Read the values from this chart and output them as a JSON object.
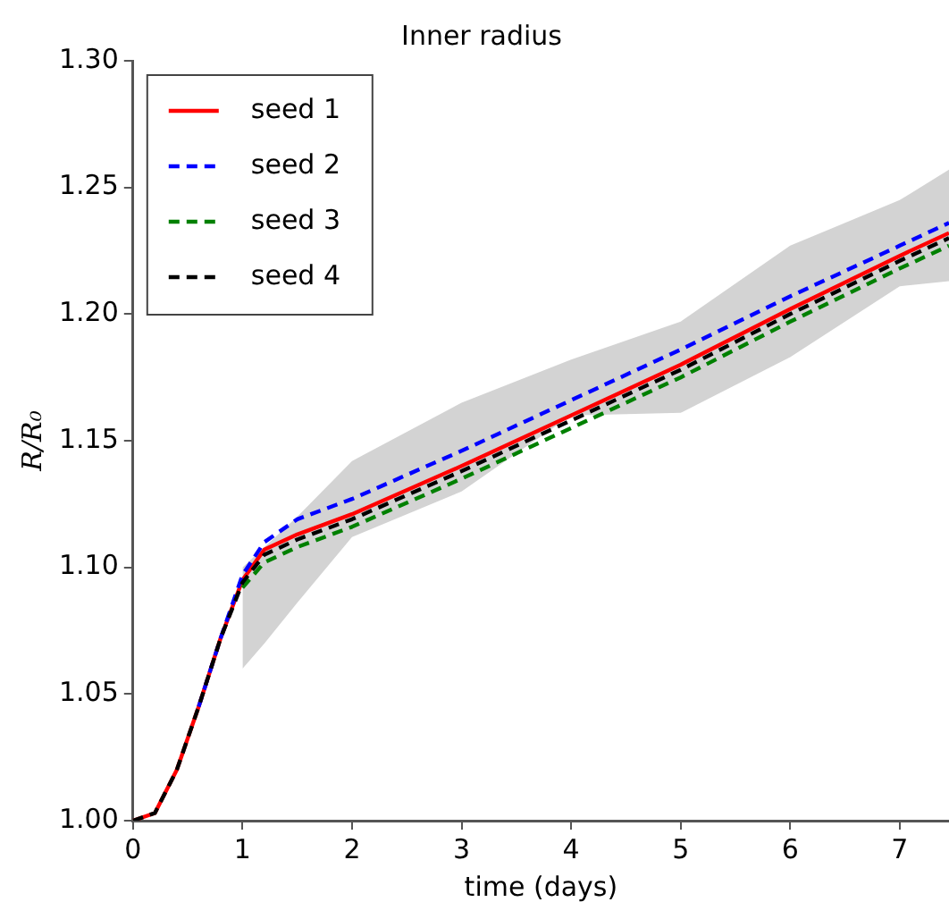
{
  "chart_data": {
    "type": "line",
    "title": "Inner radius",
    "xlabel": "time (days)",
    "ylabel": "R/R₀",
    "x": [
      0,
      0.2,
      0.4,
      0.6,
      0.8,
      1,
      1.2,
      1.5,
      2,
      3,
      4,
      5,
      6,
      7,
      7.45
    ],
    "series": [
      {
        "name": "seed 1",
        "color": "#ff0000",
        "line_style": "solid",
        "values": [
          1.0,
          1.003,
          1.02,
          1.045,
          1.072,
          1.095,
          1.107,
          1.113,
          1.121,
          1.14,
          1.16,
          1.18,
          1.202,
          1.223,
          1.232
        ],
        "lower": [
          null,
          null,
          null,
          null,
          null,
          1.06,
          1.07,
          1.086,
          1.112,
          1.13,
          1.16,
          1.161,
          1.183,
          1.211,
          1.213
        ],
        "upper": [
          null,
          null,
          null,
          null,
          null,
          1.1,
          1.108,
          1.12,
          1.142,
          1.165,
          1.182,
          1.197,
          1.227,
          1.245,
          1.257
        ]
      },
      {
        "name": "seed 2",
        "color": "#0000ff",
        "line_style": "dashed",
        "values": [
          null,
          null,
          null,
          1.045,
          1.072,
          1.097,
          1.11,
          1.119,
          1.127,
          1.146,
          1.166,
          1.186,
          1.207,
          1.227,
          1.236
        ]
      },
      {
        "name": "seed 3",
        "color": "#008000",
        "line_style": "dashed",
        "values": [
          null,
          null,
          null,
          null,
          null,
          1.092,
          1.102,
          1.108,
          1.116,
          1.135,
          1.155,
          1.175,
          1.197,
          1.218,
          1.227
        ]
      },
      {
        "name": "seed 4",
        "color": "#000000",
        "line_style": "dashed",
        "values": [
          1.0,
          1.003,
          1.02,
          1.045,
          1.072,
          1.094,
          1.105,
          1.111,
          1.119,
          1.138,
          1.158,
          1.178,
          1.2,
          1.221,
          1.23
        ]
      }
    ],
    "xlim": [
      0,
      7.45
    ],
    "xticks": [
      0,
      1,
      2,
      3,
      4,
      5,
      6,
      7
    ],
    "ylim": [
      1.0,
      1.3
    ],
    "yticks": [
      {
        "value": 1.0,
        "label": "1.00"
      },
      {
        "value": 1.05,
        "label": "1.05"
      },
      {
        "value": 1.1,
        "label": "1.10"
      },
      {
        "value": 1.15,
        "label": "1.15"
      },
      {
        "value": 1.2,
        "label": "1.20"
      },
      {
        "value": 1.25,
        "label": "1.25"
      },
      {
        "value": 1.3,
        "label": "1.30"
      }
    ],
    "grid": false,
    "legend": "top left",
    "marker": "none"
  }
}
